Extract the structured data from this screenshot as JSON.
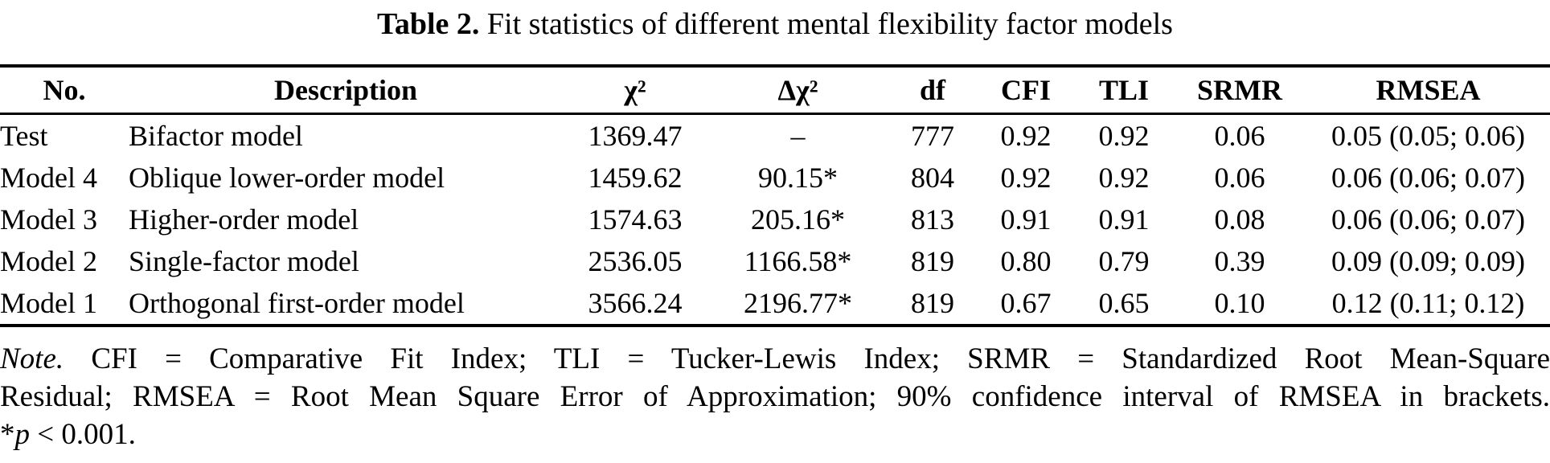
{
  "caption": {
    "label": "Table 2.",
    "text": "Fit statistics of different mental flexibility factor models"
  },
  "table": {
    "headers": [
      "No.",
      "Description",
      "χ²",
      "Δχ²",
      "df",
      "CFI",
      "TLI",
      "SRMR",
      "RMSEA"
    ],
    "rows": [
      {
        "no": "Test",
        "description": "Bifactor model",
        "chi2": "1369.47",
        "delta_chi2": "–",
        "df": "777",
        "cfi": "0.92",
        "tli": "0.92",
        "srmr": "0.06",
        "rmsea": "0.05 (0.05; 0.06)"
      },
      {
        "no": "Model 4",
        "description": "Oblique lower-order model",
        "chi2": "1459.62",
        "delta_chi2": "90.15*",
        "df": "804",
        "cfi": "0.92",
        "tli": "0.92",
        "srmr": "0.06",
        "rmsea": "0.06 (0.06; 0.07)"
      },
      {
        "no": "Model 3",
        "description": "Higher-order model",
        "chi2": "1574.63",
        "delta_chi2": "205.16*",
        "df": "813",
        "cfi": "0.91",
        "tli": "0.91",
        "srmr": "0.08",
        "rmsea": "0.06 (0.06; 0.07)"
      },
      {
        "no": "Model 2",
        "description": "Single-factor model",
        "chi2": "2536.05",
        "delta_chi2": "1166.58*",
        "df": "819",
        "cfi": "0.80",
        "tli": "0.79",
        "srmr": "0.39",
        "rmsea": "0.09 (0.09; 0.09)"
      },
      {
        "no": "Model 1",
        "description": "Orthogonal first-order model",
        "chi2": "3566.24",
        "delta_chi2": "2196.77*",
        "df": "819",
        "cfi": "0.67",
        "tli": "0.65",
        "srmr": "0.10",
        "rmsea": "0.12 (0.11; 0.12)"
      }
    ]
  },
  "note": {
    "label": "Note.",
    "line1_rest": "CFI = Comparative Fit Index; TLI = Tucker-Lewis Index; SRMR = Standardized Root Mean-Square",
    "line2": "Residual; RMSEA = Root Mean Square Error of Approximation; 90% confidence interval of RMSEA in brackets.",
    "sig_star": "*",
    "sig_p": "p",
    "sig_rest": " < 0.001."
  },
  "colors": {
    "text": "#000000",
    "background": "#ffffff",
    "rule": "#000000"
  }
}
